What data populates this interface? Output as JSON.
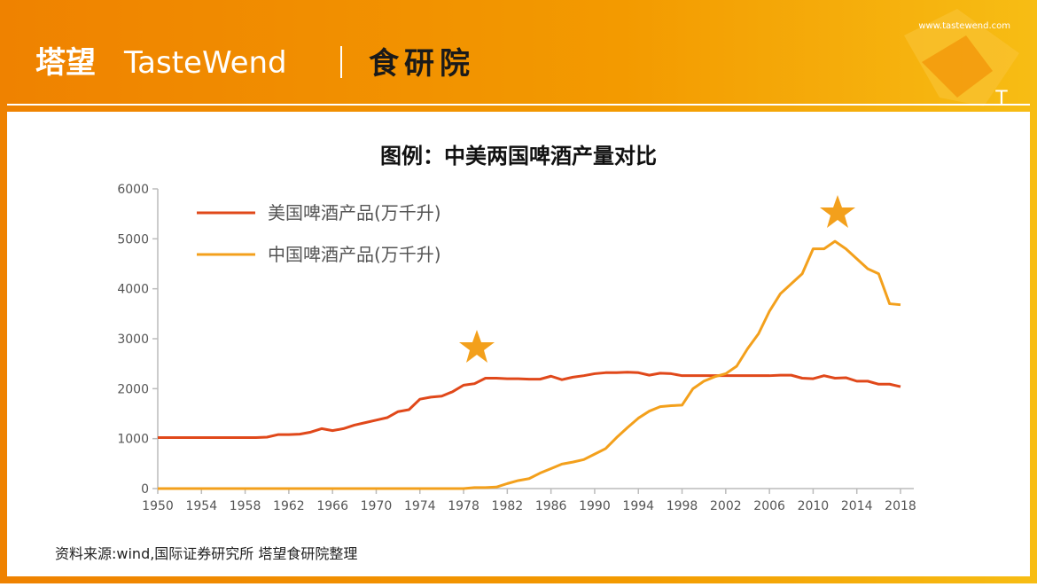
{
  "header": {
    "brand_cn": "塔望",
    "brand_en": "TasteWend",
    "institute": "食研院",
    "url": "www.tastewend.com",
    "corner": "T"
  },
  "chart_data": {
    "type": "line",
    "title": "图例：中美两国啤酒产量对比",
    "x": [
      1950,
      1951,
      1952,
      1953,
      1954,
      1955,
      1956,
      1957,
      1958,
      1959,
      1960,
      1961,
      1962,
      1963,
      1964,
      1965,
      1966,
      1967,
      1968,
      1969,
      1970,
      1971,
      1972,
      1973,
      1974,
      1975,
      1976,
      1977,
      1978,
      1979,
      1980,
      1981,
      1982,
      1983,
      1984,
      1985,
      1986,
      1987,
      1988,
      1989,
      1990,
      1991,
      1992,
      1993,
      1994,
      1995,
      1996,
      1997,
      1998,
      1999,
      2000,
      2001,
      2002,
      2003,
      2004,
      2005,
      2006,
      2007,
      2008,
      2009,
      2010,
      2011,
      2012,
      2013,
      2014,
      2015,
      2016,
      2017,
      2018
    ],
    "series": [
      {
        "name": "美国啤酒产品(万千升)",
        "color": "#e0481a",
        "values": [
          1020,
          1020,
          1020,
          1020,
          1020,
          1020,
          1020,
          1020,
          1020,
          1020,
          1030,
          1080,
          1080,
          1090,
          1130,
          1200,
          1160,
          1200,
          1270,
          1320,
          1370,
          1420,
          1540,
          1580,
          1790,
          1830,
          1850,
          1940,
          2070,
          2100,
          2210,
          2210,
          2200,
          2200,
          2190,
          2190,
          2250,
          2180,
          2230,
          2260,
          2300,
          2320,
          2320,
          2330,
          2320,
          2270,
          2310,
          2300,
          2260,
          2260,
          2260,
          2260,
          2260,
          2260,
          2260,
          2260,
          2260,
          2270,
          2270,
          2210,
          2200,
          2260,
          2210,
          2220,
          2150,
          2150,
          2090,
          2090,
          2040
        ]
      },
      {
        "name": "中国啤酒产品(万千升)",
        "color": "#f3a01c",
        "values": [
          0,
          0,
          0,
          0,
          0,
          0,
          0,
          0,
          0,
          0,
          0,
          0,
          0,
          0,
          0,
          0,
          0,
          0,
          0,
          0,
          0,
          0,
          0,
          0,
          0,
          0,
          0,
          0,
          0,
          20,
          20,
          30,
          100,
          160,
          200,
          310,
          400,
          490,
          530,
          580,
          690,
          800,
          1020,
          1220,
          1410,
          1550,
          1640,
          1660,
          1670,
          2000,
          2150,
          2240,
          2300,
          2450,
          2800,
          3100,
          3550,
          3900,
          4100,
          4300,
          4800,
          4800,
          4950,
          4800,
          4600,
          4400,
          4300,
          3700,
          3680
        ]
      }
    ],
    "xlim": [
      1950,
      2018
    ],
    "xticks": [
      1950,
      1954,
      1958,
      1962,
      1966,
      1970,
      1974,
      1978,
      1982,
      1986,
      1990,
      1994,
      1998,
      2002,
      2006,
      2010,
      2014,
      2018
    ],
    "ylim": [
      0,
      6000
    ],
    "yticks": [
      0,
      1000,
      2000,
      3000,
      4000,
      5000,
      6000
    ],
    "legend": "upper-left",
    "grid": false
  },
  "source": "资料来源:wind,国际证券研究所 塔望食研院整理"
}
